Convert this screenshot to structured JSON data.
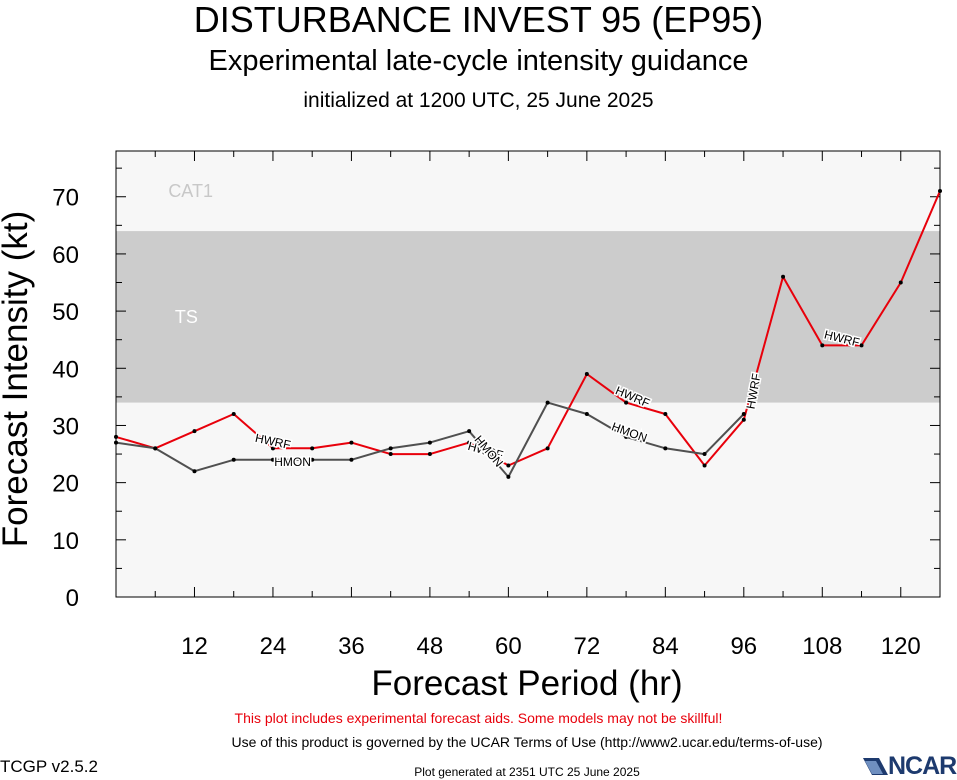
{
  "titles": {
    "main": "DISTURBANCE INVEST 95 (EP95)",
    "sub": "Experimental late-cycle intensity guidance",
    "init": "initialized at 1200 UTC, 25 June 2025"
  },
  "footer": {
    "warning": "This plot includes experimental forecast aids. Some models may not be skillful!",
    "terms": "Use of this product is governed by the UCAR Terms of Use (http://www2.ucar.edu/terms-of-use)",
    "version": "TCGP v2.5.2",
    "generated": "Plot generated at 2351 UTC   25 June 2025",
    "logo_text": "NCAR"
  },
  "chart_data": {
    "type": "line",
    "xlabel": "Forecast Period (hr)",
    "ylabel": "Forecast Intensity (kt)",
    "xlim": [
      0,
      126
    ],
    "ylim": [
      0,
      78
    ],
    "xticks": [
      12,
      24,
      36,
      48,
      60,
      72,
      84,
      96,
      108,
      120
    ],
    "yticks": [
      0,
      10,
      20,
      30,
      40,
      50,
      60,
      70
    ],
    "grid": false,
    "bands": [
      {
        "label": "TS",
        "from": 34,
        "to": 64,
        "color": "#cccccc",
        "label_color": "#ffffff",
        "label_at": [
          9,
          49
        ]
      },
      {
        "label": "CAT1",
        "from": 64,
        "to": 78,
        "color": "#f7f7f7",
        "label_color": "#c8c8c8",
        "label_at": [
          8,
          71
        ]
      }
    ],
    "series": [
      {
        "name": "HWRF",
        "color": "#e8000b",
        "x": [
          0,
          6,
          12,
          18,
          24,
          30,
          36,
          42,
          48,
          54,
          60,
          66,
          72,
          78,
          84,
          90,
          96,
          102,
          108,
          114,
          120,
          126
        ],
        "values": [
          28,
          26,
          29,
          32,
          26,
          26,
          27,
          25,
          25,
          27,
          23,
          26,
          39,
          34,
          32,
          23,
          31,
          56,
          44,
          44,
          55,
          71
        ],
        "labels": [
          {
            "x": 24,
            "y": 27.2,
            "angle": 12
          },
          {
            "x": 56.5,
            "y": 25.6,
            "angle": 16
          },
          {
            "x": 79,
            "y": 35,
            "angle": 23
          },
          {
            "x": 97.5,
            "y": 36,
            "angle": -80
          },
          {
            "x": 111,
            "y": 45.2,
            "angle": 14
          }
        ]
      },
      {
        "name": "HMON",
        "color": "#505050",
        "x": [
          0,
          6,
          12,
          18,
          24,
          30,
          36,
          42,
          48,
          54,
          60,
          66,
          72,
          78,
          84,
          90,
          96
        ],
        "values": [
          27,
          26,
          22,
          24,
          24,
          24,
          24,
          26,
          27,
          29,
          21,
          34,
          32,
          28,
          26,
          25,
          32
        ],
        "labels": [
          {
            "x": 27,
            "y": 23.6,
            "angle": 0
          },
          {
            "x": 57,
            "y": 25.5,
            "angle": 50
          },
          {
            "x": 78.5,
            "y": 28.8,
            "angle": 20
          }
        ]
      }
    ]
  }
}
